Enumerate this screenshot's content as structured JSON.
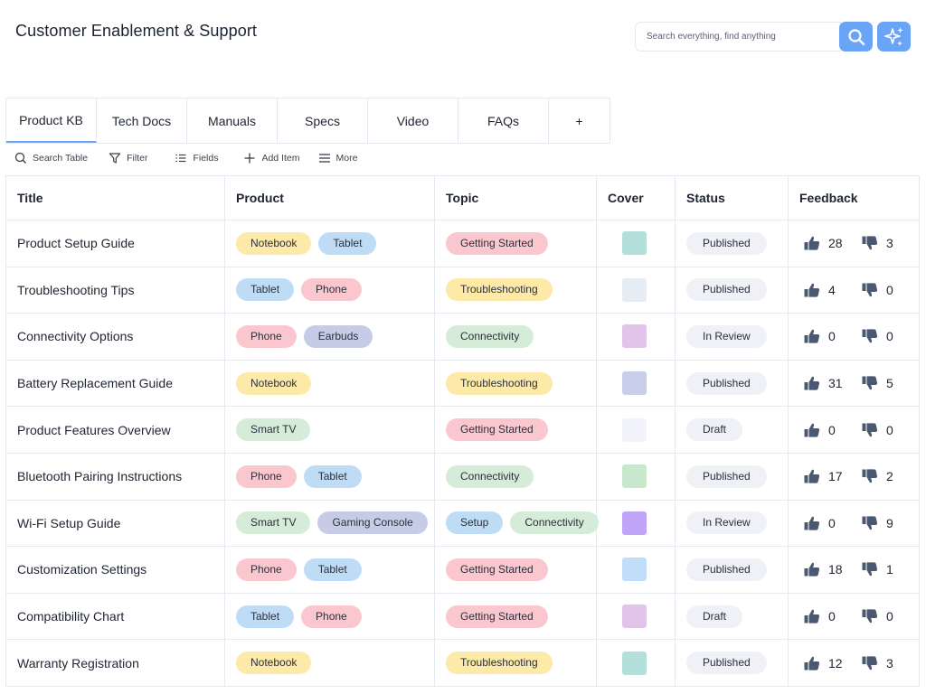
{
  "app": {
    "title": "Customer Enablement & Support"
  },
  "search": {
    "placeholder": "Search everything, find anything"
  },
  "icons": {
    "search": "search-icon",
    "ai": "sparkles-icon",
    "thumb_up": "thumbs-up-icon",
    "thumb_down": "thumbs-down-icon"
  },
  "colors": {
    "accent": "#6aa4f7"
  },
  "tabs": [
    {
      "label": "Product KB"
    },
    {
      "label": "Tech Docs"
    },
    {
      "label": "Manuals"
    },
    {
      "label": "Specs"
    },
    {
      "label": "Video"
    },
    {
      "label": "FAQs"
    },
    {
      "label": "+"
    }
  ],
  "toolbar": {
    "search_label": "Search Table",
    "filter_label": "Filter",
    "fields_label": "Fields",
    "add_label": "Add Item",
    "more_label": "More"
  },
  "table": {
    "columns": [
      "Title",
      "Product",
      "Topic",
      "Cover",
      "Status",
      "Feedback"
    ],
    "rows": [
      {
        "title": "Product Setup Guide",
        "product": [
          [
            "Notebook",
            "#fdeaa8"
          ],
          [
            "Tablet",
            "#bfdcf7"
          ]
        ],
        "topic": [
          [
            "Getting Started",
            "#fbc7cf"
          ]
        ],
        "cover": "#b3e0da",
        "status": "Published",
        "up": "28",
        "down": "3"
      },
      {
        "title": "Troubleshooting Tips",
        "product": [
          [
            "Tablet",
            "#bfdcf7"
          ],
          [
            "Phone",
            "#fbc7cf"
          ]
        ],
        "topic": [
          [
            "Troubleshooting",
            "#fdeaa8"
          ]
        ],
        "cover": "#e6ecf4",
        "status": "Published",
        "up": "4",
        "down": "0"
      },
      {
        "title": "Connectivity Options",
        "product": [
          [
            "Phone",
            "#fbc7cf"
          ],
          [
            "Earbuds",
            "#c6cbe6"
          ]
        ],
        "topic": [
          [
            "Connectivity",
            "#d5ecd9"
          ]
        ],
        "cover": "#e2c3e9",
        "status": "In Review",
        "up": "0",
        "down": "0"
      },
      {
        "title": "Battery Replacement Guide",
        "product": [
          [
            "Notebook",
            "#fdeaa8"
          ]
        ],
        "topic": [
          [
            "Troubleshooting",
            "#fdeaa8"
          ]
        ],
        "cover": "#c8cdea",
        "status": "Published",
        "up": "31",
        "down": "5"
      },
      {
        "title": "Product Features Overview",
        "product": [
          [
            "Smart TV",
            "#d5ecd9"
          ]
        ],
        "topic": [
          [
            "Getting Started",
            "#fbc7cf"
          ]
        ],
        "cover": "#f3f4fb",
        "status": "Draft",
        "up": "0",
        "down": "0"
      },
      {
        "title": "Bluetooth Pairing Instructions",
        "product": [
          [
            "Phone",
            "#fbc7cf"
          ],
          [
            "Tablet",
            "#bfdcf7"
          ]
        ],
        "topic": [
          [
            "Connectivity",
            "#d5ecd9"
          ]
        ],
        "cover": "#c7e8cc",
        "status": "Published",
        "up": "17",
        "down": "2"
      },
      {
        "title": "Wi-Fi Setup Guide",
        "product": [
          [
            "Smart TV",
            "#d5ecd9"
          ],
          [
            "Gaming Console",
            "#c6cbe6"
          ]
        ],
        "topic": [
          [
            "Setup",
            "#bfdcf7"
          ],
          [
            "Connectivity",
            "#d5ecd9"
          ]
        ],
        "cover": "#bfa4f8",
        "status": "In Review",
        "up": "0",
        "down": "9"
      },
      {
        "title": "Customization Settings",
        "product": [
          [
            "Phone",
            "#fbc7cf"
          ],
          [
            "Tablet",
            "#bfdcf7"
          ]
        ],
        "topic": [
          [
            "Getting Started",
            "#fbc7cf"
          ]
        ],
        "cover": "#c1ddf9",
        "status": "Published",
        "up": "18",
        "down": "1"
      },
      {
        "title": "Compatibility Chart",
        "product": [
          [
            "Tablet",
            "#bfdcf7"
          ],
          [
            "Phone",
            "#fbc7cf"
          ]
        ],
        "topic": [
          [
            "Getting Started",
            "#fbc7cf"
          ]
        ],
        "cover": "#e2c3e9",
        "status": "Draft",
        "up": "0",
        "down": "0"
      },
      {
        "title": "Warranty Registration",
        "product": [
          [
            "Notebook",
            "#fdeaa8"
          ]
        ],
        "topic": [
          [
            "Troubleshooting",
            "#fdeaa8"
          ]
        ],
        "cover": "#b3e0da",
        "status": "Published",
        "up": "12",
        "down": "3"
      }
    ]
  }
}
